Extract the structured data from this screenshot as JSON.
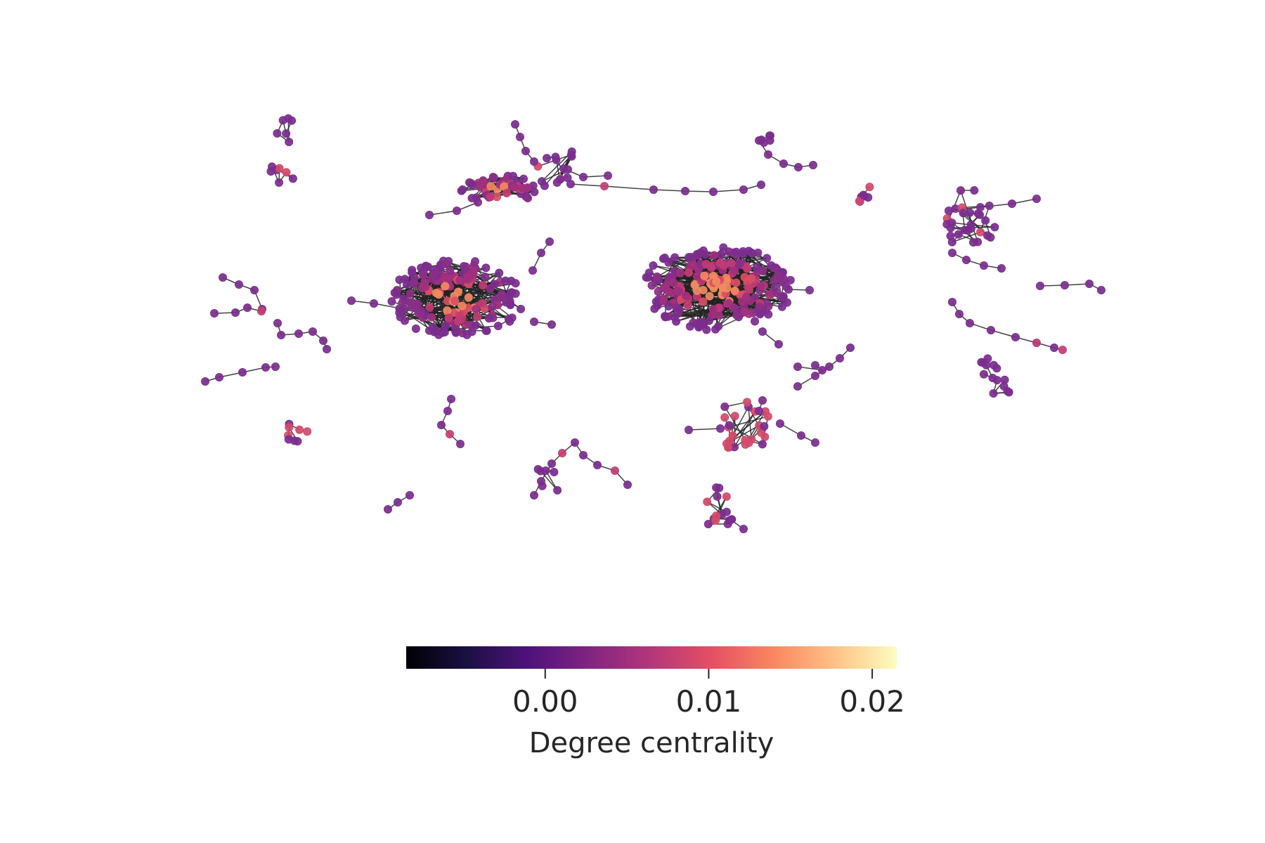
{
  "colorbar": {
    "label": "Degree centrality",
    "ticks": [
      {
        "value": 0.0,
        "label": "0.00"
      },
      {
        "value": 0.01,
        "label": "0.01"
      },
      {
        "value": 0.02,
        "label": "0.02"
      }
    ],
    "range": [
      -0.0085,
      0.0215
    ],
    "colormap": "magma",
    "stops": [
      "#000004",
      "#1c1044",
      "#4f127b",
      "#812581",
      "#b5367a",
      "#e55064",
      "#fb8761",
      "#fec287",
      "#fcfdbf"
    ]
  },
  "graph": {
    "node_fill_low": "#7b2e8e",
    "node_fill_high": "#f08a60",
    "edge_color": "#222222"
  }
}
